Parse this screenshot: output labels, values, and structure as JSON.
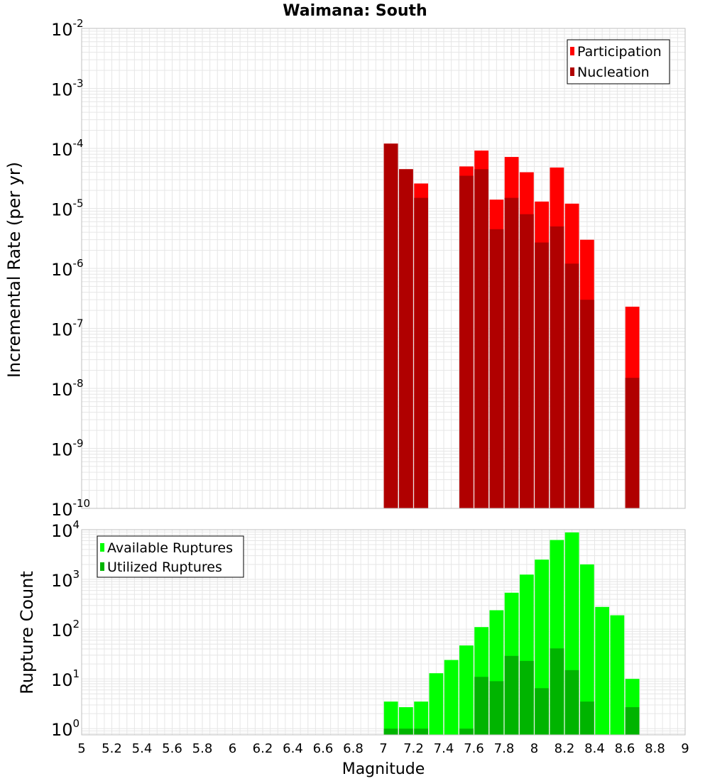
{
  "chart_data": [
    {
      "type": "bar",
      "title": "Waimana: South",
      "ylabel": "Incremental Rate (per yr)",
      "xlabel": "",
      "yscale": "log",
      "ylim": [
        1e-10,
        0.01
      ],
      "xlim": [
        5,
        9
      ],
      "grid": true,
      "legend_position": "top-right",
      "x": [
        7.05,
        7.15,
        7.25,
        7.55,
        7.65,
        7.75,
        7.85,
        7.95,
        8.05,
        8.15,
        8.25,
        8.35,
        8.65
      ],
      "series": [
        {
          "name": "Participation",
          "color": "#ff0000",
          "values": [
            0.00012,
            4.5e-05,
            2.6e-05,
            5e-05,
            9.2e-05,
            1.4e-05,
            7.2e-05,
            4e-05,
            1.3e-05,
            4.8e-05,
            1.2e-05,
            3e-06,
            2.3e-07
          ]
        },
        {
          "name": "Nucleation",
          "color": "#b00000",
          "values": [
            0.00012,
            4.5e-05,
            1.5e-05,
            3.5e-05,
            4.5e-05,
            4.5e-06,
            1.5e-05,
            8e-06,
            2.7e-06,
            5e-06,
            1.2e-06,
            3e-07,
            1.5e-08
          ]
        }
      ]
    },
    {
      "type": "bar",
      "title": "",
      "ylabel": "Rupture Count",
      "xlabel": "Magnitude",
      "yscale": "log",
      "ylim": [
        0.75,
        10000
      ],
      "xlim": [
        5,
        9
      ],
      "grid": true,
      "legend_position": "top-left",
      "x": [
        7.05,
        7.15,
        7.25,
        7.35,
        7.45,
        7.55,
        7.65,
        7.75,
        7.85,
        7.95,
        8.05,
        8.15,
        8.25,
        8.35,
        8.45,
        8.55,
        8.65
      ],
      "series": [
        {
          "name": "Available Ruptures",
          "color": "#00ff00",
          "values": [
            3.5,
            2.7,
            3.5,
            13,
            24,
            47,
            110,
            240,
            540,
            1250,
            2500,
            6200,
            8800,
            2000,
            280,
            190,
            10
          ]
        },
        {
          "name": "Utilized Ruptures",
          "color": "#00b400",
          "values": [
            1,
            1,
            1,
            null,
            null,
            1,
            11,
            9,
            29,
            23,
            6.5,
            41,
            15,
            3.5,
            null,
            null,
            2.7
          ]
        }
      ]
    }
  ],
  "axis_ticks": {
    "x_labels": [
      "5",
      "5.2",
      "5.4",
      "5.6",
      "5.8",
      "6",
      "6.2",
      "6.4",
      "6.6",
      "6.8",
      "7",
      "7.2",
      "7.4",
      "7.6",
      "7.8",
      "8",
      "8.2",
      "8.4",
      "8.6",
      "8.8",
      "9"
    ],
    "top_y_exponents": [
      "-10",
      "-9",
      "-8",
      "-7",
      "-6",
      "-5",
      "-4",
      "-3",
      "-2"
    ],
    "bottom_y_exponents": [
      "0",
      "1",
      "2",
      "3",
      "4"
    ],
    "base": "10"
  }
}
